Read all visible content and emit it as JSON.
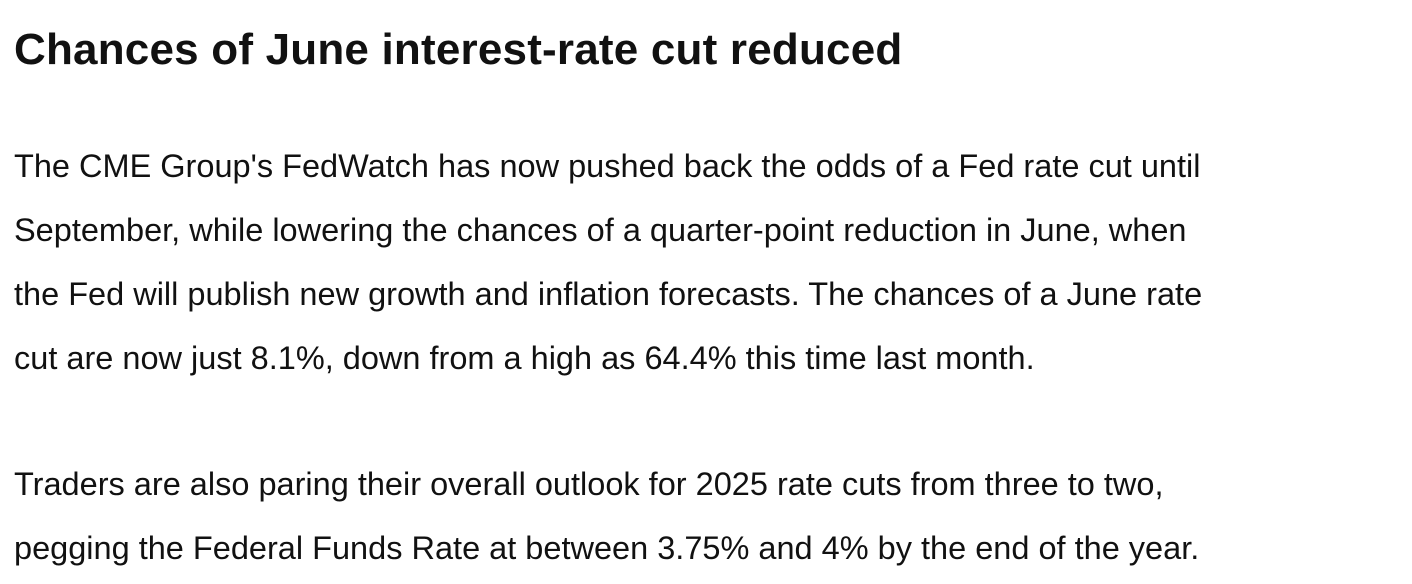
{
  "article": {
    "headline": "Chances of June interest-rate cut reduced",
    "paragraphs": [
      {
        "lines": [
          "The CME Group's FedWatch has now pushed back the odds of a Fed rate cut until",
          "September, while lowering the chances of a quarter-point reduction in June, when",
          "the Fed will publish new growth and inflation forecasts. The chances of a June rate",
          "cut are now just 8.1%, down from a high as 64.4% this time last month."
        ]
      },
      {
        "lines": [
          "Traders are also paring their overall outlook for 2025 rate cuts from three to two,",
          "pegging the Federal Funds Rate at between 3.75% and 4% by the end of the year."
        ]
      }
    ]
  },
  "colors": {
    "text": "#111111",
    "background": "#ffffff"
  }
}
